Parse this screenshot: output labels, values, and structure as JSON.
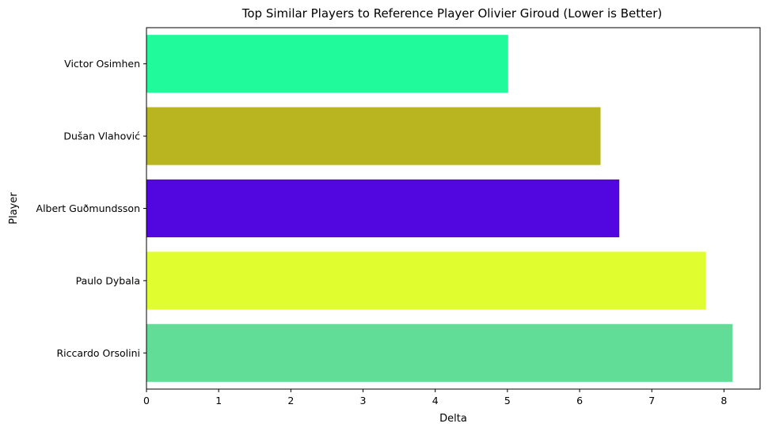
{
  "chart_data": {
    "type": "bar",
    "orientation": "horizontal",
    "title": "Top Similar Players to Reference Player Olivier Giroud (Lower is Better)",
    "xlabel": "Delta",
    "ylabel": "Player",
    "xlim": [
      0,
      8.5
    ],
    "xticks": [
      "0",
      "1",
      "2",
      "3",
      "4",
      "5",
      "6",
      "7",
      "8"
    ],
    "grid": false,
    "legend": "none",
    "categories": [
      "Victor Osimhen",
      "Dušan Vlahović",
      "Albert Guðmundsson",
      "Paulo Dybala",
      "Riccardo Orsolini"
    ],
    "values": [
      5.01,
      6.29,
      6.55,
      7.75,
      8.12
    ],
    "colors": [
      "#21fa9a",
      "#b9b520",
      "#5206e0",
      "#e0fd30",
      "#61dd97"
    ]
  }
}
